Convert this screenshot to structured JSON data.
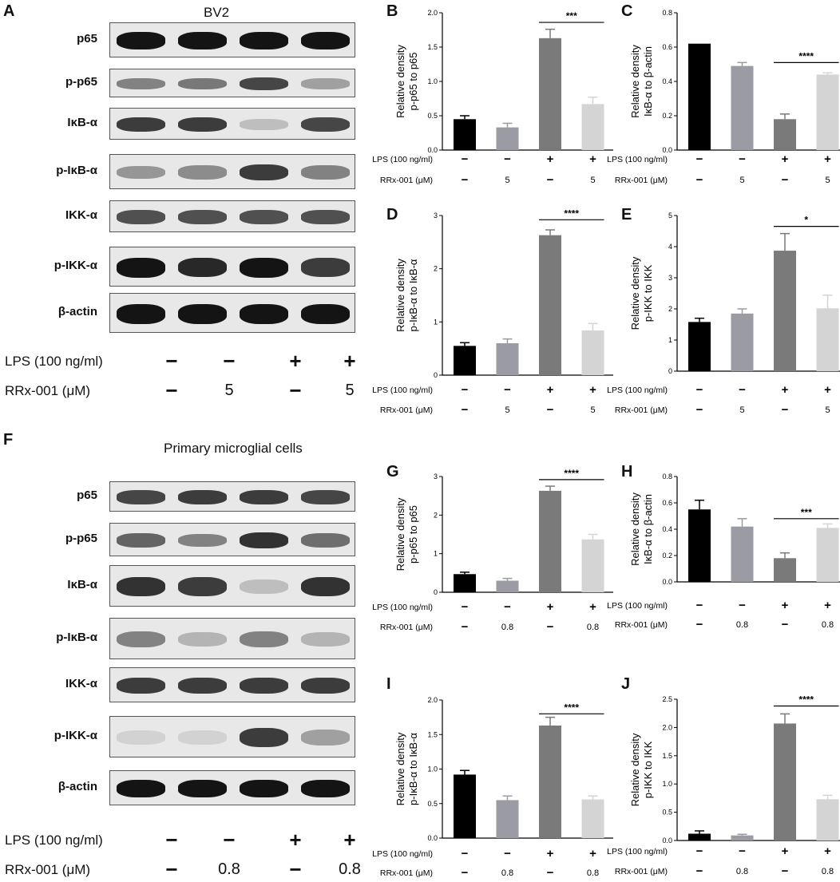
{
  "figure": {
    "letters": {
      "A": "A",
      "B": "B",
      "C": "C",
      "D": "D",
      "E": "E",
      "F": "F",
      "G": "G",
      "H": "H",
      "I": "I",
      "J": "J"
    },
    "blot_A": {
      "title": "BV2",
      "proteins": [
        "p65",
        "p-p65",
        "IκB-α",
        "p-IκB-α",
        "IKK-α",
        "p-IKK-α",
        "β-actin"
      ],
      "lps_label": "LPS (100 ng/ml)",
      "rrx_label": "RRx-001 (μM)",
      "lps": [
        "−",
        "−",
        "+",
        "+"
      ],
      "rrx": [
        "−",
        "5",
        "−",
        "5"
      ]
    },
    "blot_F": {
      "title": "Primary microglial cells",
      "proteins": [
        "p65",
        "p-p65",
        "IκB-α",
        "p-IκB-α",
        "IKK-α",
        "p-IKK-α",
        "β-actin"
      ],
      "lps_label": "LPS (100 ng/ml)",
      "rrx_label": "RRx-001 (μM)",
      "lps": [
        "−",
        "−",
        "+",
        "+"
      ],
      "rrx": [
        "−",
        "0.8",
        "−",
        "0.8"
      ]
    }
  },
  "colors": {
    "bar1": "#000000",
    "bar2": "#9b9ba3",
    "bar3": "#7a7a7a",
    "bar4": "#d4d4d4"
  },
  "chart_data": [
    {
      "id": "B",
      "type": "bar",
      "ylabel": [
        "Relative density",
        "p-p65 to p65"
      ],
      "values": [
        0.45,
        0.33,
        1.63,
        0.67
      ],
      "errors": [
        0.05,
        0.06,
        0.13,
        0.1
      ],
      "ylim": [
        0,
        2.0
      ],
      "ticks": [
        "0.0",
        "0.5",
        "1.0",
        "1.5",
        "2.0"
      ],
      "sig": "***",
      "sig_from": 2,
      "sig_to": 3,
      "sig_y": 1.86,
      "lps_label": "LPS (100 ng/ml)",
      "rrx_label": "RRx-001 (μM)",
      "lps": [
        "−",
        "−",
        "+",
        "+"
      ],
      "rrx": [
        "−",
        "5",
        "−",
        "5"
      ]
    },
    {
      "id": "C",
      "type": "bar",
      "ylabel": [
        "Relative density",
        "IκB-α to β-actin"
      ],
      "values": [
        0.62,
        0.49,
        0.18,
        0.44
      ],
      "errors": [
        0.0,
        0.02,
        0.03,
        0.01
      ],
      "ylim": [
        0,
        0.8
      ],
      "ticks": [
        "0.0",
        "0.2",
        "0.4",
        "0.6",
        "0.8"
      ],
      "sig": "****",
      "sig_from": 2,
      "sig_to": 3,
      "sig_y": 0.51,
      "lps_label": "LPS (100 ng/ml)",
      "rrx_label": "RRx-001 (μM)",
      "lps": [
        "−",
        "−",
        "+",
        "+"
      ],
      "rrx": [
        "−",
        "5",
        "−",
        "5"
      ]
    },
    {
      "id": "D",
      "type": "bar",
      "ylabel": [
        "Relative density",
        "p-IκB-α to IκB-α"
      ],
      "values": [
        0.55,
        0.6,
        2.63,
        0.84
      ],
      "errors": [
        0.06,
        0.08,
        0.1,
        0.13
      ],
      "ylim": [
        0,
        3
      ],
      "ticks": [
        "0",
        "1",
        "2",
        "3"
      ],
      "sig": "****",
      "sig_from": 2,
      "sig_to": 3,
      "sig_y": 2.92,
      "lps_label": "LPS (100 ng/ml)",
      "rrx_label": "RRx-001 (μM)",
      "lps": [
        "−",
        "−",
        "+",
        "+"
      ],
      "rrx": [
        "−",
        "5",
        "−",
        "5"
      ]
    },
    {
      "id": "E",
      "type": "bar",
      "ylabel": [
        "Relative density",
        "p-IKK to IKK"
      ],
      "values": [
        1.58,
        1.85,
        3.87,
        2.02
      ],
      "errors": [
        0.12,
        0.15,
        0.55,
        0.42
      ],
      "ylim": [
        0,
        5
      ],
      "ticks": [
        "0",
        "1",
        "2",
        "3",
        "4",
        "5"
      ],
      "sig": "*",
      "sig_from": 2,
      "sig_to": 3,
      "sig_y": 4.65,
      "lps_label": "LPS (100 ng/ml)",
      "rrx_label": "RRx-001 (μM)",
      "lps": [
        "−",
        "−",
        "+",
        "+"
      ],
      "rrx": [
        "−",
        "5",
        "−",
        "5"
      ]
    },
    {
      "id": "G",
      "type": "bar",
      "ylabel": [
        "Relative density",
        "p-p65 to p65"
      ],
      "values": [
        0.47,
        0.3,
        2.63,
        1.37
      ],
      "errors": [
        0.05,
        0.06,
        0.12,
        0.13
      ],
      "ylim": [
        0,
        3
      ],
      "ticks": [
        "0",
        "1",
        "2",
        "3"
      ],
      "sig": "****",
      "sig_from": 2,
      "sig_to": 3,
      "sig_y": 2.92,
      "lps_label": "LPS (100 ng/ml)",
      "rrx_label": "RRx-001 (μM)",
      "lps": [
        "−",
        "−",
        "+",
        "+"
      ],
      "rrx": [
        "−",
        "0.8",
        "−",
        "0.8"
      ]
    },
    {
      "id": "H",
      "type": "bar",
      "ylabel": [
        "Relative density",
        "IκB-α to β-actin"
      ],
      "values": [
        0.55,
        0.42,
        0.18,
        0.41
      ],
      "errors": [
        0.07,
        0.06,
        0.04,
        0.03
      ],
      "ylim": [
        0,
        0.8
      ],
      "ticks": [
        "0.0",
        "0.2",
        "0.4",
        "0.6",
        "0.8"
      ],
      "sig": "***",
      "sig_from": 2,
      "sig_to": 3,
      "sig_y": 0.48,
      "lps_label": "LPS (100 ng/ml)",
      "rrx_label": "RRx-001 (μM)",
      "lps": [
        "−",
        "−",
        "+",
        "+"
      ],
      "rrx": [
        "−",
        "0.8",
        "−",
        "0.8"
      ]
    },
    {
      "id": "I",
      "type": "bar",
      "ylabel": [
        "Relative density",
        "p-IκB-α to IκB-α"
      ],
      "values": [
        0.92,
        0.55,
        1.63,
        0.56
      ],
      "errors": [
        0.06,
        0.06,
        0.12,
        0.05
      ],
      "ylim": [
        0,
        2.0
      ],
      "ticks": [
        "0.0",
        "0.5",
        "1.0",
        "1.5",
        "2.0"
      ],
      "sig": "****",
      "sig_from": 2,
      "sig_to": 3,
      "sig_y": 1.8,
      "lps_label": "LPS (100 ng/ml)",
      "rrx_label": "RRx-001 (μM)",
      "lps": [
        "−",
        "−",
        "+",
        "+"
      ],
      "rrx": [
        "−",
        "0.8",
        "−",
        "0.8"
      ]
    },
    {
      "id": "J",
      "type": "bar",
      "ylabel": [
        "Relative density",
        "p-IKK to IKK"
      ],
      "values": [
        0.12,
        0.09,
        2.07,
        0.73
      ],
      "errors": [
        0.05,
        0.02,
        0.17,
        0.07
      ],
      "ylim": [
        0,
        2.5
      ],
      "ticks": [
        "0.0",
        "0.5",
        "1.0",
        "1.5",
        "2.0",
        "2.5"
      ],
      "sig": "****",
      "sig_from": 2,
      "sig_to": 3,
      "sig_y": 2.38,
      "lps_label": "LPS (100 ng/ml)",
      "rrx_label": "RRx-001 (μM)",
      "lps": [
        "−",
        "−",
        "+",
        "+"
      ],
      "rrx": [
        "−",
        "0.8",
        "−",
        "0.8"
      ]
    }
  ]
}
